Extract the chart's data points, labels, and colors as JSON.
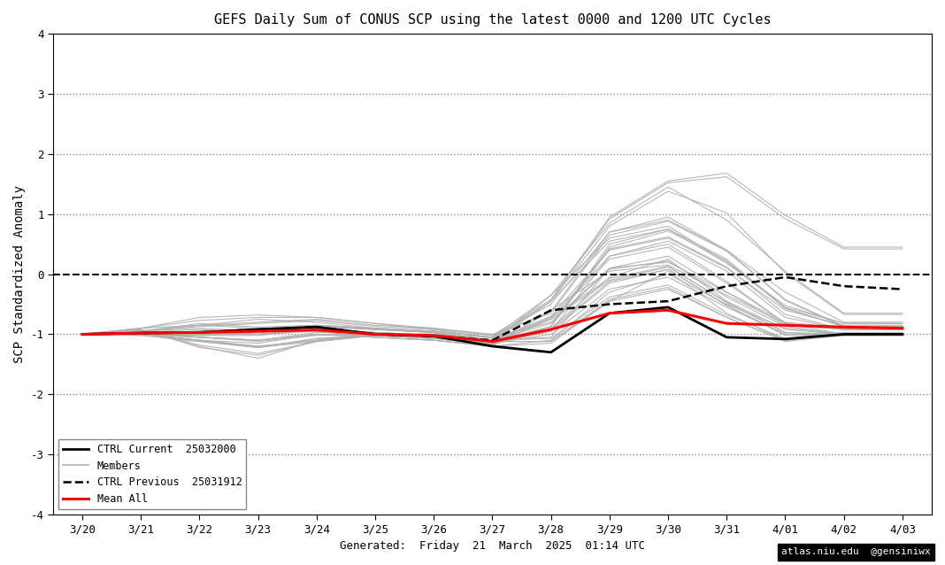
{
  "title": "GEFS Daily Sum of CONUS SCP using the latest 0000 and 1200 UTC Cycles",
  "xlabel": "Generated:  Friday  21  March  2025  01:14 UTC",
  "ylabel": "SCP Standardized Anomaly",
  "xlim": [
    -0.5,
    14.5
  ],
  "ylim": [
    -4,
    4
  ],
  "yticks": [
    -4,
    -3,
    -2,
    -1,
    0,
    1,
    2,
    3,
    4
  ],
  "xtick_labels": [
    "3/20",
    "3/21",
    "3/22",
    "3/23",
    "3/24",
    "3/25",
    "3/26",
    "3/27",
    "3/28",
    "3/29",
    "3/30",
    "3/31",
    "4/01",
    "4/02",
    "4/03"
  ],
  "dotted_levels": [
    -3,
    -2,
    -1,
    1,
    2,
    3
  ],
  "dashed_zero": 0,
  "background_color": "#ffffff",
  "ctrl_current_color": "#000000",
  "ctrl_previous_color": "#000000",
  "members_color": "#b0b0b0",
  "mean_all_color": "#ff0000",
  "watermark_text": "atlas.niu.edu  @gensiniwx",
  "watermark_bg": "#000000",
  "watermark_color": "#ffffff",
  "legend_labels": [
    "CTRL Current  25032000",
    "Members",
    "CTRL Previous  25031912",
    "Mean All"
  ],
  "ctrl_current": [
    -1.0,
    -0.98,
    -0.97,
    -0.92,
    -0.88,
    -1.0,
    -1.03,
    -1.2,
    -1.3,
    -0.65,
    -0.55,
    -1.05,
    -1.08,
    -1.0,
    -1.0
  ],
  "ctrl_previous": [
    -1.0,
    -0.98,
    -0.97,
    -0.92,
    -0.88,
    -1.0,
    -1.03,
    -1.1,
    -0.6,
    -0.5,
    -0.45,
    -0.2,
    -0.05,
    -0.2,
    -0.25
  ],
  "mean_all": [
    -1.0,
    -0.98,
    -0.97,
    -0.95,
    -0.93,
    -1.0,
    -1.02,
    -1.12,
    -0.92,
    -0.65,
    -0.6,
    -0.82,
    -0.85,
    -0.88,
    -0.9
  ],
  "members": [
    [
      -1.0,
      -0.98,
      -0.95,
      -0.9,
      -0.9,
      -1.0,
      -1.0,
      -1.05,
      -0.8,
      0.1,
      0.2,
      -0.3,
      -0.8,
      -0.9,
      -0.9
    ],
    [
      -1.0,
      -1.0,
      -1.05,
      -1.1,
      -1.0,
      -1.05,
      -1.1,
      -1.2,
      -1.1,
      -0.3,
      0.0,
      -0.5,
      -0.9,
      -1.0,
      -1.0
    ],
    [
      -1.0,
      -0.95,
      -0.85,
      -0.75,
      -0.8,
      -0.9,
      -0.95,
      -1.05,
      -0.5,
      0.7,
      0.95,
      0.4,
      -0.3,
      -0.8,
      -0.8
    ],
    [
      -1.0,
      -1.0,
      -1.1,
      -1.2,
      -1.1,
      -1.0,
      -1.05,
      -1.15,
      -1.0,
      -0.25,
      -0.05,
      -0.55,
      -1.0,
      -1.0,
      -1.0
    ],
    [
      -1.0,
      -0.92,
      -1.2,
      -1.4,
      -1.1,
      -1.0,
      -1.0,
      -1.1,
      -0.7,
      0.4,
      0.6,
      0.1,
      -0.6,
      -0.85,
      -0.85
    ],
    [
      -1.0,
      -1.0,
      -1.0,
      -0.95,
      -0.85,
      -0.92,
      -0.97,
      -1.1,
      -1.05,
      0.1,
      0.3,
      -0.3,
      -0.85,
      -0.92,
      -0.92
    ],
    [
      -1.0,
      -1.0,
      -0.95,
      -1.0,
      -0.95,
      -1.05,
      -1.1,
      -1.2,
      -1.15,
      -0.45,
      0.05,
      -0.65,
      -1.1,
      -1.0,
      -1.0
    ],
    [
      -1.0,
      -0.95,
      -0.82,
      -0.88,
      -0.85,
      -0.9,
      -0.95,
      -1.05,
      -0.35,
      0.85,
      1.45,
      0.9,
      0.05,
      -0.65,
      -0.65
    ],
    [
      -1.0,
      -1.0,
      -1.1,
      -1.15,
      -1.0,
      -1.0,
      -1.0,
      -1.1,
      -0.9,
      -0.05,
      0.25,
      -0.45,
      -0.92,
      -1.0,
      -1.0
    ],
    [
      -1.0,
      -0.95,
      -1.0,
      -1.0,
      -0.92,
      -0.97,
      -1.02,
      -1.15,
      -0.95,
      0.3,
      0.55,
      0.05,
      -0.72,
      -0.92,
      -0.92
    ],
    [
      -1.0,
      -1.0,
      -1.05,
      -1.1,
      -1.0,
      -1.05,
      -1.1,
      -1.2,
      -0.6,
      0.05,
      0.15,
      -0.35,
      -0.82,
      -1.0,
      -1.0
    ],
    [
      -1.0,
      -0.9,
      -0.72,
      -0.68,
      -0.72,
      -0.82,
      -0.9,
      -1.02,
      -0.42,
      0.95,
      1.55,
      1.68,
      0.98,
      0.45,
      0.45
    ],
    [
      -1.0,
      -1.0,
      -1.1,
      -1.2,
      -1.1,
      -1.0,
      -1.05,
      -1.15,
      -0.95,
      -0.15,
      0.08,
      -0.52,
      -1.0,
      -1.0,
      -1.0
    ],
    [
      -1.0,
      -0.95,
      -0.85,
      -0.8,
      -0.75,
      -0.85,
      -0.9,
      -1.0,
      -0.65,
      0.65,
      0.88,
      0.38,
      -0.42,
      -0.87,
      -0.87
    ],
    [
      -1.0,
      -1.0,
      -1.0,
      -1.0,
      -0.92,
      -0.97,
      -1.02,
      -1.12,
      -1.12,
      -0.45,
      -0.25,
      -0.72,
      -1.1,
      -1.0,
      -1.0
    ],
    [
      -1.0,
      -0.92,
      -1.18,
      -1.32,
      -1.12,
      -1.02,
      -1.02,
      -1.12,
      -0.45,
      0.55,
      0.75,
      0.18,
      -0.52,
      -0.82,
      -0.82
    ],
    [
      -1.0,
      -1.0,
      -0.97,
      -0.97,
      -0.87,
      -0.92,
      -0.97,
      -1.1,
      -0.75,
      0.25,
      0.45,
      -0.15,
      -0.82,
      -0.92,
      -0.92
    ],
    [
      -1.0,
      -0.95,
      -0.9,
      -0.95,
      -0.92,
      -1.02,
      -1.07,
      -1.17,
      -0.87,
      0.45,
      0.72,
      0.22,
      -0.57,
      -0.87,
      -0.87
    ],
    [
      -1.0,
      -1.0,
      -1.1,
      -1.22,
      -1.07,
      -1.02,
      -1.07,
      -1.17,
      -0.75,
      -0.1,
      0.12,
      -0.47,
      -0.97,
      -1.0,
      -1.0
    ],
    [
      -1.0,
      -0.9,
      -0.85,
      -0.9,
      -0.85,
      -0.9,
      -0.95,
      -1.05,
      -0.45,
      0.8,
      1.38,
      1.02,
      0.02,
      -0.67,
      -0.67
    ],
    [
      -1.0,
      -1.0,
      -1.05,
      -1.12,
      -1.02,
      -1.0,
      -1.0,
      -1.1,
      -0.82,
      0.08,
      0.22,
      -0.38,
      -0.87,
      -1.0,
      -1.0
    ],
    [
      -1.0,
      -0.95,
      -1.05,
      -1.1,
      -0.97,
      -0.97,
      -1.02,
      -1.12,
      -0.87,
      0.42,
      0.62,
      0.12,
      -0.67,
      -0.92,
      -0.92
    ],
    [
      -1.0,
      -1.0,
      -1.02,
      -0.97,
      -0.87,
      -0.92,
      -0.97,
      -1.1,
      -1.07,
      -0.38,
      -0.18,
      -0.68,
      -1.07,
      -0.97,
      -0.97
    ],
    [
      -1.0,
      -0.9,
      -0.77,
      -0.72,
      -0.72,
      -0.82,
      -0.92,
      -1.07,
      -0.45,
      0.92,
      1.52,
      1.62,
      0.92,
      0.42,
      0.42
    ],
    [
      -1.0,
      -1.0,
      -1.12,
      -1.22,
      -1.12,
      -1.02,
      -1.07,
      -1.17,
      -0.92,
      -0.12,
      0.08,
      -0.52,
      -1.02,
      -1.02,
      -1.02
    ],
    [
      -1.0,
      -0.95,
      -0.87,
      -0.82,
      -0.77,
      -0.87,
      -0.92,
      -1.02,
      -0.62,
      0.7,
      0.9,
      0.4,
      -0.44,
      -0.87,
      -0.87
    ],
    [
      -1.0,
      -1.0,
      -1.02,
      -1.02,
      -0.92,
      -0.97,
      -1.02,
      -1.12,
      -1.12,
      -0.42,
      -0.22,
      -0.72,
      -1.12,
      -1.02,
      -1.02
    ],
    [
      -1.0,
      -0.92,
      -1.22,
      -1.35,
      -1.12,
      -1.02,
      -1.02,
      -1.12,
      -0.35,
      0.6,
      0.8,
      0.2,
      -0.55,
      -0.82,
      -0.82
    ],
    [
      -1.0,
      -1.02,
      -0.97,
      -0.97,
      -0.87,
      -0.92,
      -0.97,
      -1.12,
      -0.72,
      0.3,
      0.5,
      -0.12,
      -0.82,
      -0.92,
      -0.92
    ],
    [
      -1.0,
      -0.97,
      -0.92,
      -0.97,
      -0.92,
      -1.02,
      -1.07,
      -1.17,
      -0.87,
      0.5,
      0.75,
      0.25,
      -0.57,
      -0.87,
      -0.87
    ],
    [
      -1.0,
      -1.02,
      -1.12,
      -1.22,
      -1.07,
      -1.02,
      -1.07,
      -1.17,
      -0.72,
      -0.07,
      0.13,
      -0.47,
      -0.97,
      -1.02,
      -1.02
    ]
  ]
}
